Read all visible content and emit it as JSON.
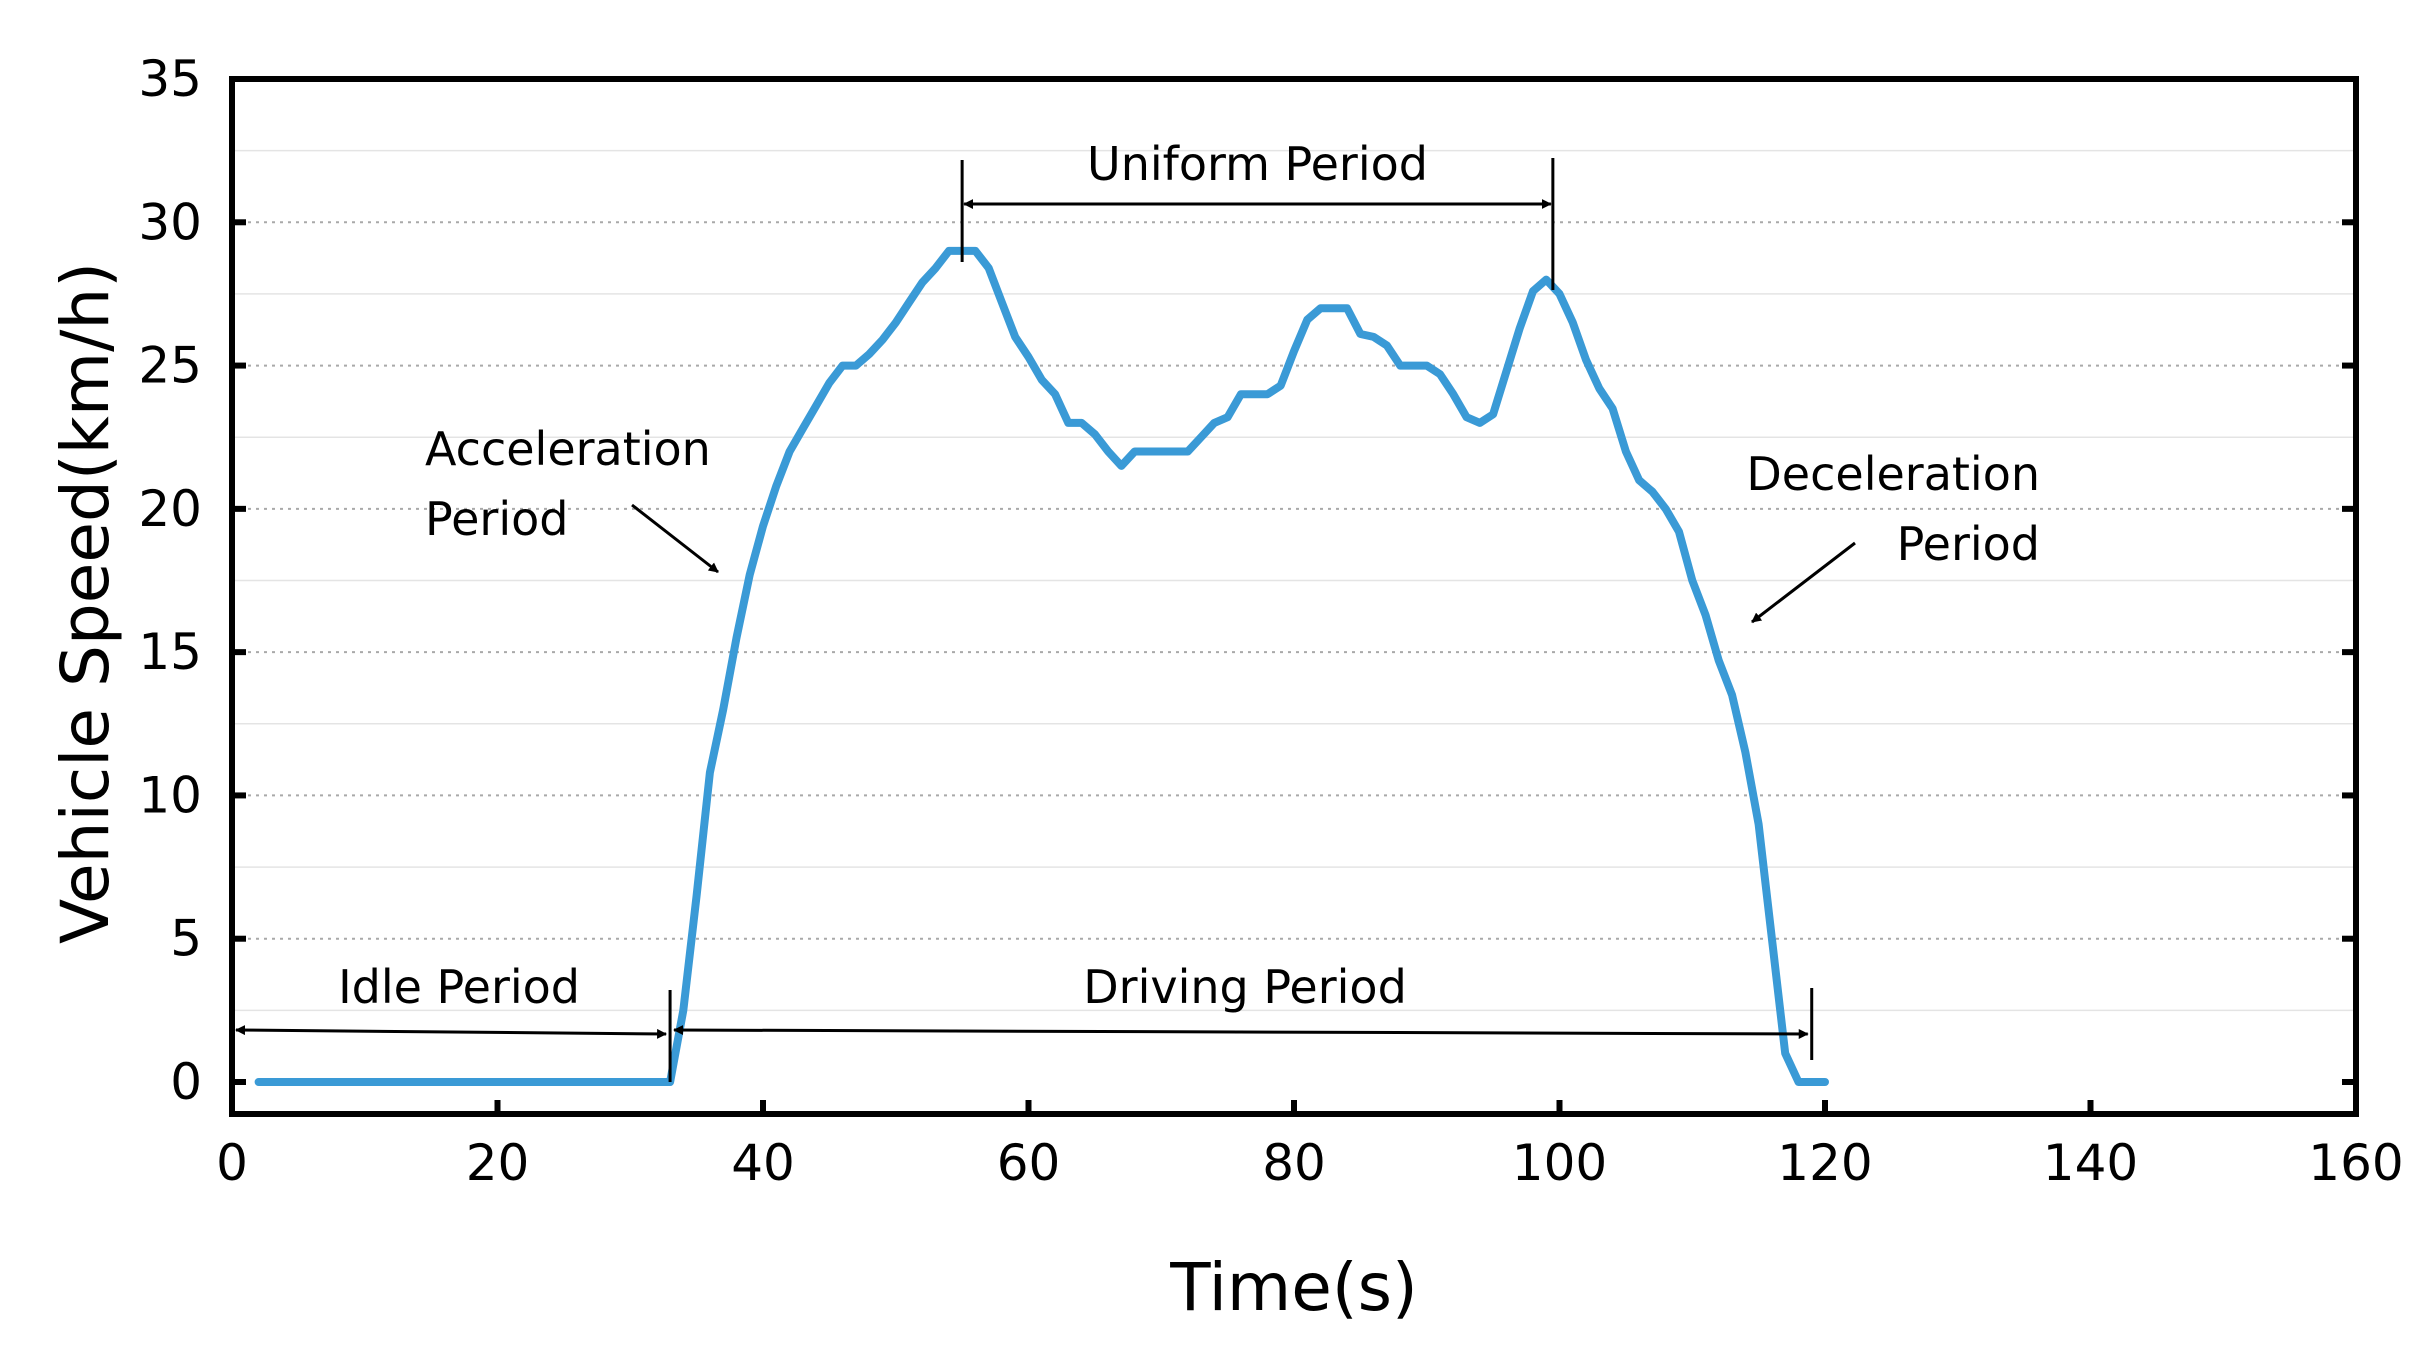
{
  "chart_data": {
    "type": "line",
    "title": "",
    "xlabel": "Time(s)",
    "ylabel": "Vehicle Speed(km/h)",
    "xlim": [
      0,
      160
    ],
    "ylim": [
      0,
      35
    ],
    "xticks": [
      0,
      20,
      40,
      60,
      80,
      100,
      120,
      140,
      160
    ],
    "yticks": [
      0,
      5,
      10,
      15,
      20,
      25,
      30,
      35
    ],
    "grid": true,
    "colors": {
      "line": "#3a9ad6",
      "grid": "#a9a9a9",
      "axis": "#000000"
    },
    "series": [
      {
        "name": "Vehicle Speed",
        "x": [
          2,
          33,
          34,
          35,
          36,
          37,
          38,
          39,
          40,
          41,
          42,
          43,
          44,
          45,
          46,
          47,
          48,
          49,
          50,
          51,
          52,
          53,
          54,
          55,
          56,
          57,
          58,
          59,
          60,
          61,
          62,
          63,
          64,
          65,
          66,
          67,
          68,
          69,
          70,
          71,
          72,
          73,
          74,
          75,
          76,
          77,
          78,
          79,
          80,
          81,
          82,
          83,
          84,
          85,
          86,
          87,
          88,
          89,
          90,
          91,
          92,
          93,
          94,
          95,
          96,
          97,
          98,
          99,
          100,
          101,
          102,
          103,
          104,
          105,
          106,
          107,
          108,
          109,
          110,
          111,
          112,
          113,
          114,
          115,
          116,
          117,
          118,
          119,
          120
        ],
        "values": [
          0,
          0,
          2.5,
          6.5,
          10.8,
          13,
          15.5,
          17.7,
          19.4,
          20.8,
          22,
          22.8,
          23.6,
          24.4,
          25,
          25,
          25.4,
          25.9,
          26.5,
          27.2,
          27.9,
          28.4,
          29,
          29,
          29,
          28.4,
          27.2,
          26,
          25.3,
          24.5,
          24,
          23,
          23,
          22.6,
          22,
          21.5,
          22,
          22,
          22,
          22,
          22,
          22.5,
          23,
          23.2,
          24,
          24,
          24,
          24.3,
          25.5,
          26.6,
          27,
          27,
          27,
          26.1,
          26,
          25.7,
          25,
          25,
          25,
          24.7,
          24,
          23.2,
          23,
          23.3,
          24.8,
          26.3,
          27.6,
          28,
          27.5,
          26.5,
          25.2,
          24.2,
          23.5,
          22,
          21,
          20.6,
          20,
          19.2,
          17.5,
          16.3,
          14.7,
          13.5,
          11.5,
          9,
          5,
          1,
          0,
          0,
          0
        ]
      }
    ],
    "annotations": [
      {
        "id": "uniform",
        "text": "Uniform Period",
        "from": 55,
        "to": 99.5
      },
      {
        "id": "idle",
        "text": "Idle Period",
        "from": 0,
        "to": 33
      },
      {
        "id": "driving",
        "text": "Driving Period",
        "from": 33,
        "to": 119
      },
      {
        "id": "accel",
        "lines": [
          "Acceleration",
          "Period"
        ]
      },
      {
        "id": "decel",
        "lines": [
          "Deceleration",
          "Period"
        ]
      }
    ]
  }
}
